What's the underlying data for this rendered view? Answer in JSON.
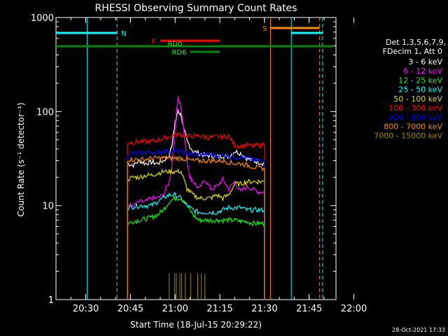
{
  "chart_data": {
    "type": "line",
    "title": "RHESSI Observing Summary Count Rates",
    "xlabel": "Start Time (18-Jul-15 20:29:22)",
    "ylabel": "Count Rate (s⁻¹ detector⁻¹)",
    "y_scale": "log",
    "ylim": [
      1,
      1000
    ],
    "xlim_minutes": [
      20.0,
      114.0
    ],
    "x_ticks": [
      {
        "label": "20:30",
        "min": 30
      },
      {
        "label": "20:45",
        "min": 45
      },
      {
        "label": "21:00",
        "min": 60
      },
      {
        "label": "21:15",
        "min": 75
      },
      {
        "label": "21:30",
        "min": 90
      },
      {
        "label": "21:45",
        "min": 105
      },
      {
        "label": "22:00",
        "min": 120
      }
    ],
    "y_ticks": [
      {
        "label": "1",
        "value": 1
      },
      {
        "label": "10",
        "value": 10
      },
      {
        "label": "100",
        "value": 100
      },
      {
        "label": "1000",
        "value": 1000
      }
    ],
    "legend_title": "Det 1,3,5,6,7,9,",
    "legend_subtitle": "FDecim 1, Att 0",
    "legend_placement": "right",
    "timestamp": "28-Oct-2021 17:33",
    "series": [
      {
        "name": "3 - 6 keV",
        "color": "#ffffff",
        "points": [
          [
            44,
            28
          ],
          [
            46,
            27
          ],
          [
            48,
            30
          ],
          [
            50,
            28
          ],
          [
            52,
            29
          ],
          [
            54,
            28
          ],
          [
            56,
            30
          ],
          [
            58,
            34
          ],
          [
            59,
            45
          ],
          [
            60,
            80
          ],
          [
            61,
            100
          ],
          [
            62,
            90
          ],
          [
            63,
            65
          ],
          [
            64,
            48
          ],
          [
            66,
            38
          ],
          [
            68,
            36
          ],
          [
            70,
            34
          ],
          [
            72,
            34
          ],
          [
            74,
            33
          ],
          [
            76,
            34
          ],
          [
            78,
            33
          ],
          [
            80,
            38
          ],
          [
            82,
            36
          ],
          [
            84,
            32
          ],
          [
            86,
            30
          ],
          [
            88,
            29
          ],
          [
            90,
            28
          ]
        ]
      },
      {
        "name": "6 - 12 keV",
        "color": "#ff00ff",
        "points": [
          [
            44,
            10
          ],
          [
            46,
            10
          ],
          [
            48,
            11
          ],
          [
            50,
            11
          ],
          [
            52,
            12
          ],
          [
            54,
            12
          ],
          [
            56,
            13
          ],
          [
            58,
            18
          ],
          [
            59,
            28
          ],
          [
            60,
            70
          ],
          [
            61,
            140
          ],
          [
            62,
            110
          ],
          [
            63,
            60
          ],
          [
            64,
            30
          ],
          [
            65,
            20
          ],
          [
            66,
            18
          ],
          [
            68,
            15
          ],
          [
            70,
            19
          ],
          [
            72,
            15
          ],
          [
            74,
            16
          ],
          [
            76,
            19
          ],
          [
            78,
            15
          ],
          [
            80,
            18
          ],
          [
            82,
            14
          ],
          [
            84,
            16
          ],
          [
            86,
            15
          ],
          [
            88,
            14
          ],
          [
            90,
            14
          ]
        ]
      },
      {
        "name": "12 - 25 keV",
        "color": "#00ff00",
        "points": [
          [
            44,
            6.5
          ],
          [
            46,
            6.8
          ],
          [
            48,
            7
          ],
          [
            50,
            7.2
          ],
          [
            52,
            7.5
          ],
          [
            54,
            8
          ],
          [
            56,
            9
          ],
          [
            58,
            11
          ],
          [
            60,
            12
          ],
          [
            62,
            12
          ],
          [
            64,
            10
          ],
          [
            66,
            8
          ],
          [
            68,
            7
          ],
          [
            70,
            7
          ],
          [
            72,
            7
          ],
          [
            74,
            7
          ],
          [
            76,
            7
          ],
          [
            78,
            7
          ],
          [
            80,
            7
          ],
          [
            82,
            6.8
          ],
          [
            84,
            6.8
          ],
          [
            86,
            6.5
          ],
          [
            88,
            6.5
          ],
          [
            90,
            6.4
          ]
        ]
      },
      {
        "name": "25 - 50 keV",
        "color": "#00ffff",
        "points": [
          [
            44,
            9.5
          ],
          [
            46,
            9.8
          ],
          [
            48,
            10
          ],
          [
            50,
            10
          ],
          [
            52,
            10
          ],
          [
            54,
            11
          ],
          [
            56,
            12
          ],
          [
            58,
            13
          ],
          [
            60,
            13
          ],
          [
            62,
            12
          ],
          [
            64,
            10
          ],
          [
            66,
            9
          ],
          [
            68,
            8.5
          ],
          [
            70,
            8.5
          ],
          [
            72,
            8.5
          ],
          [
            74,
            8.5
          ],
          [
            76,
            9
          ],
          [
            78,
            9.5
          ],
          [
            80,
            9.5
          ],
          [
            82,
            9.5
          ],
          [
            84,
            9
          ],
          [
            86,
            9
          ],
          [
            88,
            9
          ],
          [
            90,
            9
          ]
        ]
      },
      {
        "name": "50 - 100 keV",
        "color": "#dddd00",
        "points": [
          [
            44,
            19
          ],
          [
            46,
            20
          ],
          [
            48,
            20
          ],
          [
            50,
            21
          ],
          [
            52,
            21
          ],
          [
            54,
            22
          ],
          [
            56,
            23
          ],
          [
            58,
            23
          ],
          [
            60,
            23
          ],
          [
            62,
            23
          ],
          [
            64,
            15
          ],
          [
            66,
            13
          ],
          [
            68,
            12
          ],
          [
            70,
            12
          ],
          [
            72,
            12
          ],
          [
            74,
            13
          ],
          [
            76,
            12
          ],
          [
            78,
            13
          ],
          [
            80,
            17
          ],
          [
            82,
            17
          ],
          [
            84,
            18
          ],
          [
            86,
            18
          ],
          [
            88,
            18
          ],
          [
            90,
            18
          ]
        ]
      },
      {
        "name": "100 - 300 keV",
        "color": "#ff0000",
        "points": [
          [
            44,
            47
          ],
          [
            46,
            47
          ],
          [
            48,
            48
          ],
          [
            50,
            48
          ],
          [
            52,
            48
          ],
          [
            54,
            50
          ],
          [
            56,
            52
          ],
          [
            58,
            54
          ],
          [
            60,
            57
          ],
          [
            62,
            57
          ],
          [
            64,
            55
          ],
          [
            66,
            55
          ],
          [
            68,
            55
          ],
          [
            70,
            54
          ],
          [
            72,
            53
          ],
          [
            74,
            54
          ],
          [
            76,
            54
          ],
          [
            78,
            55
          ],
          [
            80,
            44
          ],
          [
            82,
            43
          ],
          [
            84,
            44
          ],
          [
            86,
            43
          ],
          [
            88,
            44
          ],
          [
            90,
            45
          ]
        ]
      },
      {
        "name": "300 - 800 keV",
        "color": "#0000ff",
        "points": [
          [
            44,
            36
          ],
          [
            46,
            36
          ],
          [
            48,
            36
          ],
          [
            50,
            37
          ],
          [
            52,
            37
          ],
          [
            54,
            37
          ],
          [
            56,
            38
          ],
          [
            58,
            38
          ],
          [
            60,
            38
          ],
          [
            62,
            38
          ],
          [
            64,
            36
          ],
          [
            66,
            35
          ],
          [
            68,
            35
          ],
          [
            70,
            35
          ],
          [
            72,
            35
          ],
          [
            74,
            34
          ],
          [
            76,
            35
          ],
          [
            78,
            34
          ],
          [
            80,
            33
          ],
          [
            82,
            33
          ],
          [
            84,
            32
          ],
          [
            86,
            31
          ],
          [
            88,
            30
          ],
          [
            90,
            30
          ]
        ]
      },
      {
        "name": "800 - 7000 keV",
        "color": "#ff8800",
        "points": [
          [
            44,
            31
          ],
          [
            46,
            31
          ],
          [
            48,
            31
          ],
          [
            50,
            31
          ],
          [
            52,
            32
          ],
          [
            54,
            32
          ],
          [
            56,
            32
          ],
          [
            58,
            32
          ],
          [
            60,
            32
          ],
          [
            62,
            32
          ],
          [
            64,
            31
          ],
          [
            66,
            30
          ],
          [
            68,
            30
          ],
          [
            70,
            30
          ],
          [
            72,
            30
          ],
          [
            74,
            30
          ],
          [
            76,
            30
          ],
          [
            78,
            29
          ],
          [
            80,
            28
          ],
          [
            82,
            28
          ],
          [
            84,
            27
          ],
          [
            86,
            26
          ],
          [
            88,
            25
          ],
          [
            90,
            25
          ]
        ]
      },
      {
        "name": "7000 - 15000 keV",
        "color": "#998800",
        "points": [
          [
            58,
            1.9
          ],
          [
            70,
            1.9
          ]
        ]
      }
    ],
    "vertical_lines": [
      {
        "min": 30.5,
        "color": "#00ffff",
        "style": "solid"
      },
      {
        "min": 40.5,
        "color": "#00ffff",
        "style": "dashed"
      },
      {
        "min": 92.0,
        "color": "#ff8800",
        "style": "solid"
      },
      {
        "min": 99.0,
        "color": "#00ffff",
        "style": "solid"
      },
      {
        "min": 108.5,
        "color": "#ff8800",
        "style": "dashed"
      },
      {
        "min": 109.5,
        "color": "#00ffff",
        "style": "dashed"
      }
    ],
    "flag_bars": [
      {
        "label": "N",
        "color": "#00ffff",
        "start": 20.0,
        "end": 40.5,
        "level": "N"
      },
      {
        "label": "S",
        "color": "#ff8800",
        "start": 92.0,
        "end": 108.5,
        "level": "S"
      },
      {
        "label": "",
        "color": "#00ffff",
        "start": 99.0,
        "end": 109.5,
        "level": "N"
      },
      {
        "label": "F",
        "color": "#ff0000",
        "start": 55.0,
        "end": 75.0,
        "level": "F"
      },
      {
        "label": "RD0",
        "color": "#008800",
        "start": 20.0,
        "end": 113.0,
        "level": "RD0"
      },
      {
        "label": "RD6",
        "color": "#008800",
        "start": 65.0,
        "end": 75.0,
        "level": "RD6"
      }
    ]
  }
}
